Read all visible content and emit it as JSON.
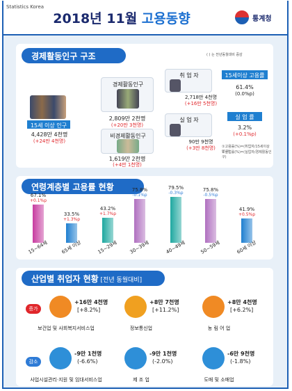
{
  "header": {
    "brand": "Statistics Korea",
    "title_main": "2018년 11월 ",
    "title_accent": "고용동향",
    "logo_text": "통계청"
  },
  "sec1": {
    "title": "경제활동인구 구조",
    "note": "( ) 는 전년동월대비 증감",
    "pop15": {
      "label": "15세 이상 인구",
      "value": "4,428만 4천명",
      "delta": "(+24만 4천명)"
    },
    "active": {
      "label": "경제활동인구",
      "value": "2,809만 2천명",
      "delta": "(+20만 3천명)"
    },
    "inactive": {
      "label": "비경제활동인구",
      "value": "1,619만 2천명",
      "delta": "(+4만 1천명)"
    },
    "employed": {
      "label": "취 업 자",
      "value": "2,718만 4천명",
      "delta": "(+16만 5천명)"
    },
    "unemployed": {
      "label": "실 업 자",
      "value": "90만 9천명",
      "delta": "(+3만 8천명)"
    },
    "emp_rate": {
      "label": "15세이상 고용률",
      "value": "61.4%",
      "delta": "(0.0%p)"
    },
    "unemp_rate": {
      "label": "실 업 률",
      "value": "3.2%",
      "delta": "(+0.1%p)"
    },
    "foot1": "①고용률(%)=(취업자/15세이상 인구)",
    "foot2": "②실업률(%)=(실업자/경제활동인구)"
  },
  "sec2": {
    "title": "연령계층별 고용률 현황",
    "chart_data": {
      "type": "bar",
      "categories": [
        "15~64세",
        "65세 이상",
        "15~29세",
        "30~39세",
        "40~49세",
        "50~59세",
        "60세 이상"
      ],
      "values": [
        67.1,
        33.5,
        43.2,
        75.8,
        79.5,
        75.8,
        41.9
      ],
      "value_labels": [
        "67.1%",
        "33.5%",
        "43.2%",
        "75.8%",
        "79.5%",
        "75.8%",
        "41.9%"
      ],
      "deltas": [
        "+0.1%p",
        "+1.3%p",
        "+1.7%p",
        "-0.1%p",
        "-0.3%p",
        "-0.5%p",
        "+0.5%p"
      ],
      "delta_colors": [
        "#e0262b",
        "#e0262b",
        "#e0262b",
        "#2e7bd6",
        "#2e7bd6",
        "#2e7bd6",
        "#e0262b"
      ],
      "colors": [
        "#c73ca0",
        "#1f7fd0",
        "#1fa8a0",
        "#b070c0",
        "#1fa8a0",
        "#b070c0",
        "#1f7fd0"
      ]
    }
  },
  "sec3": {
    "title": "산업별 취업자 현황",
    "title_sub": " [전년 동월대비]",
    "inc_tag": "증가",
    "dec_tag": "감소",
    "increase": [
      {
        "value": "+16만 4천명",
        "pct": "[+8.2%]",
        "name": "보건업 및 사회복지서비스업"
      },
      {
        "value": "+8만 7천명",
        "pct": "[+11.2%]",
        "name": "정보통신업"
      },
      {
        "value": "+8만 4천명",
        "pct": "[+6.2%]",
        "name": "농 림 어 업"
      }
    ],
    "decrease": [
      {
        "value": "-9만 1천명",
        "pct": "(-6.6%)",
        "name": "사업시설관리·지원 및 임대서비스업"
      },
      {
        "value": "-9만 1천명",
        "pct": "(-2.0%)",
        "name": "제 조 업"
      },
      {
        "value": "-6만 9천명",
        "pct": "(-1.8%)",
        "name": "도매 및 소매업"
      }
    ]
  }
}
